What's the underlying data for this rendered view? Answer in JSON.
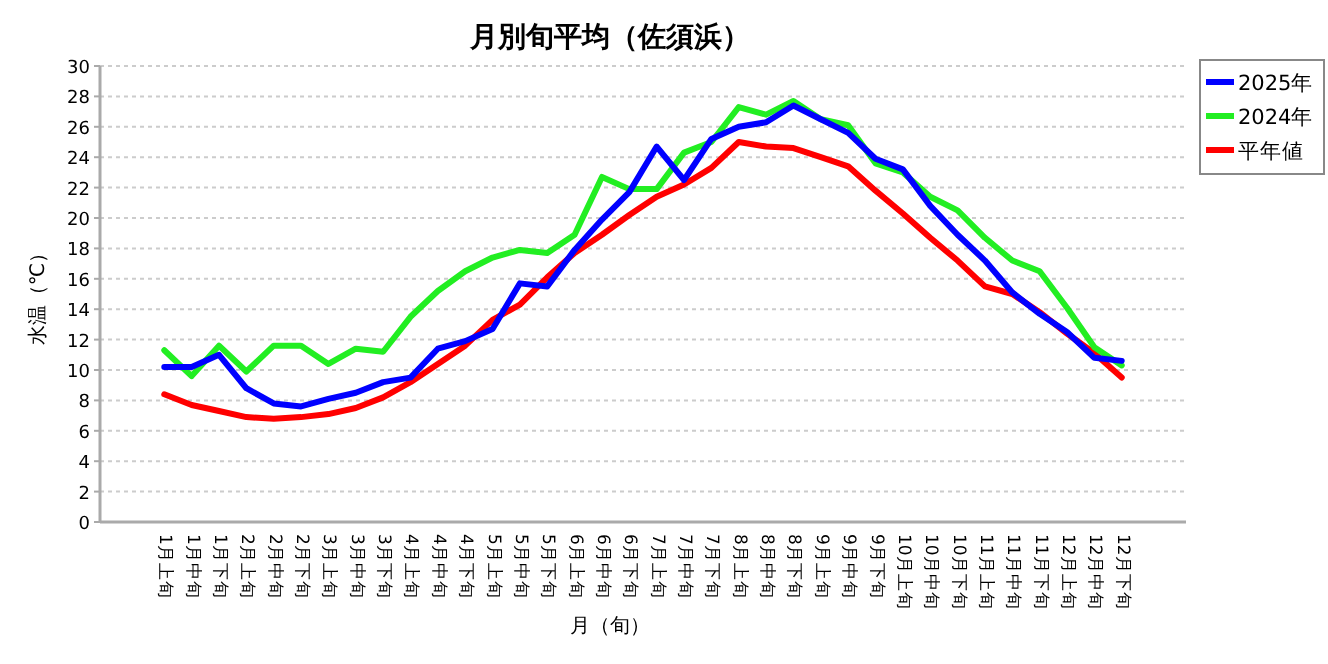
{
  "chart_data": {
    "type": "line",
    "title": "月別旬平均（佐須浜）",
    "xlabel": "月（旬）",
    "ylabel": "水温（℃）",
    "categories": [
      "1月上旬",
      "1月中旬",
      "1月下旬",
      "2月上旬",
      "2月中旬",
      "2月下旬",
      "3月上旬",
      "3月中旬",
      "3月下旬",
      "4月上旬",
      "4月中旬",
      "4月下旬",
      "5月上旬",
      "5月中旬",
      "5月下旬",
      "6月上旬",
      "6月中旬",
      "6月下旬",
      "7月上旬",
      "7月中旬",
      "7月下旬",
      "8月上旬",
      "8月中旬",
      "8月下旬",
      "9月上旬",
      "9月中旬",
      "9月下旬",
      "10月上旬",
      "10月中旬",
      "10月下旬",
      "11月上旬",
      "11月中旬",
      "11月下旬",
      "12月上旬",
      "12月中旬",
      "12月下旬"
    ],
    "series": [
      {
        "name": "2025年",
        "color": "#0000ff",
        "values": [
          10.2,
          10.2,
          11.0,
          8.8,
          7.8,
          7.6,
          8.1,
          8.5,
          9.2,
          9.5,
          11.4,
          11.9,
          12.7,
          15.7,
          15.5,
          17.9,
          19.9,
          21.7,
          24.7,
          22.5,
          25.2,
          26.0,
          26.3,
          27.4,
          26.5,
          25.6,
          23.9,
          23.2,
          20.8,
          18.9,
          17.2,
          15.1,
          13.7,
          12.5,
          10.8,
          10.6
        ]
      },
      {
        "name": "2024年",
        "color": "#22ee22",
        "values": [
          11.3,
          9.6,
          11.6,
          9.9,
          11.6,
          11.6,
          10.4,
          11.4,
          11.2,
          13.5,
          15.2,
          16.5,
          17.4,
          17.9,
          17.7,
          18.9,
          22.7,
          21.9,
          21.9,
          24.3,
          25.0,
          27.3,
          26.8,
          27.7,
          26.5,
          26.1,
          23.6,
          23.0,
          21.4,
          20.5,
          18.7,
          17.2,
          16.5,
          14.1,
          11.5,
          10.3
        ]
      },
      {
        "name": "平年値",
        "color": "#ff0000",
        "values": [
          8.4,
          7.7,
          7.3,
          6.9,
          6.8,
          6.9,
          7.1,
          7.5,
          8.2,
          9.2,
          10.4,
          11.6,
          13.3,
          14.3,
          16.1,
          17.7,
          18.9,
          20.2,
          21.4,
          22.2,
          23.3,
          25.0,
          24.7,
          24.6,
          24.0,
          23.4,
          21.8,
          20.3,
          18.7,
          17.2,
          15.5,
          15.0,
          13.8,
          12.4,
          11.1,
          9.5
        ]
      }
    ],
    "ylim": [
      0,
      30
    ],
    "yticks": [
      0,
      2,
      4,
      6,
      8,
      10,
      12,
      14,
      16,
      18,
      20,
      22,
      24,
      26,
      28,
      30
    ],
    "grid": "y",
    "legend": "top right",
    "line_style": "solid"
  }
}
